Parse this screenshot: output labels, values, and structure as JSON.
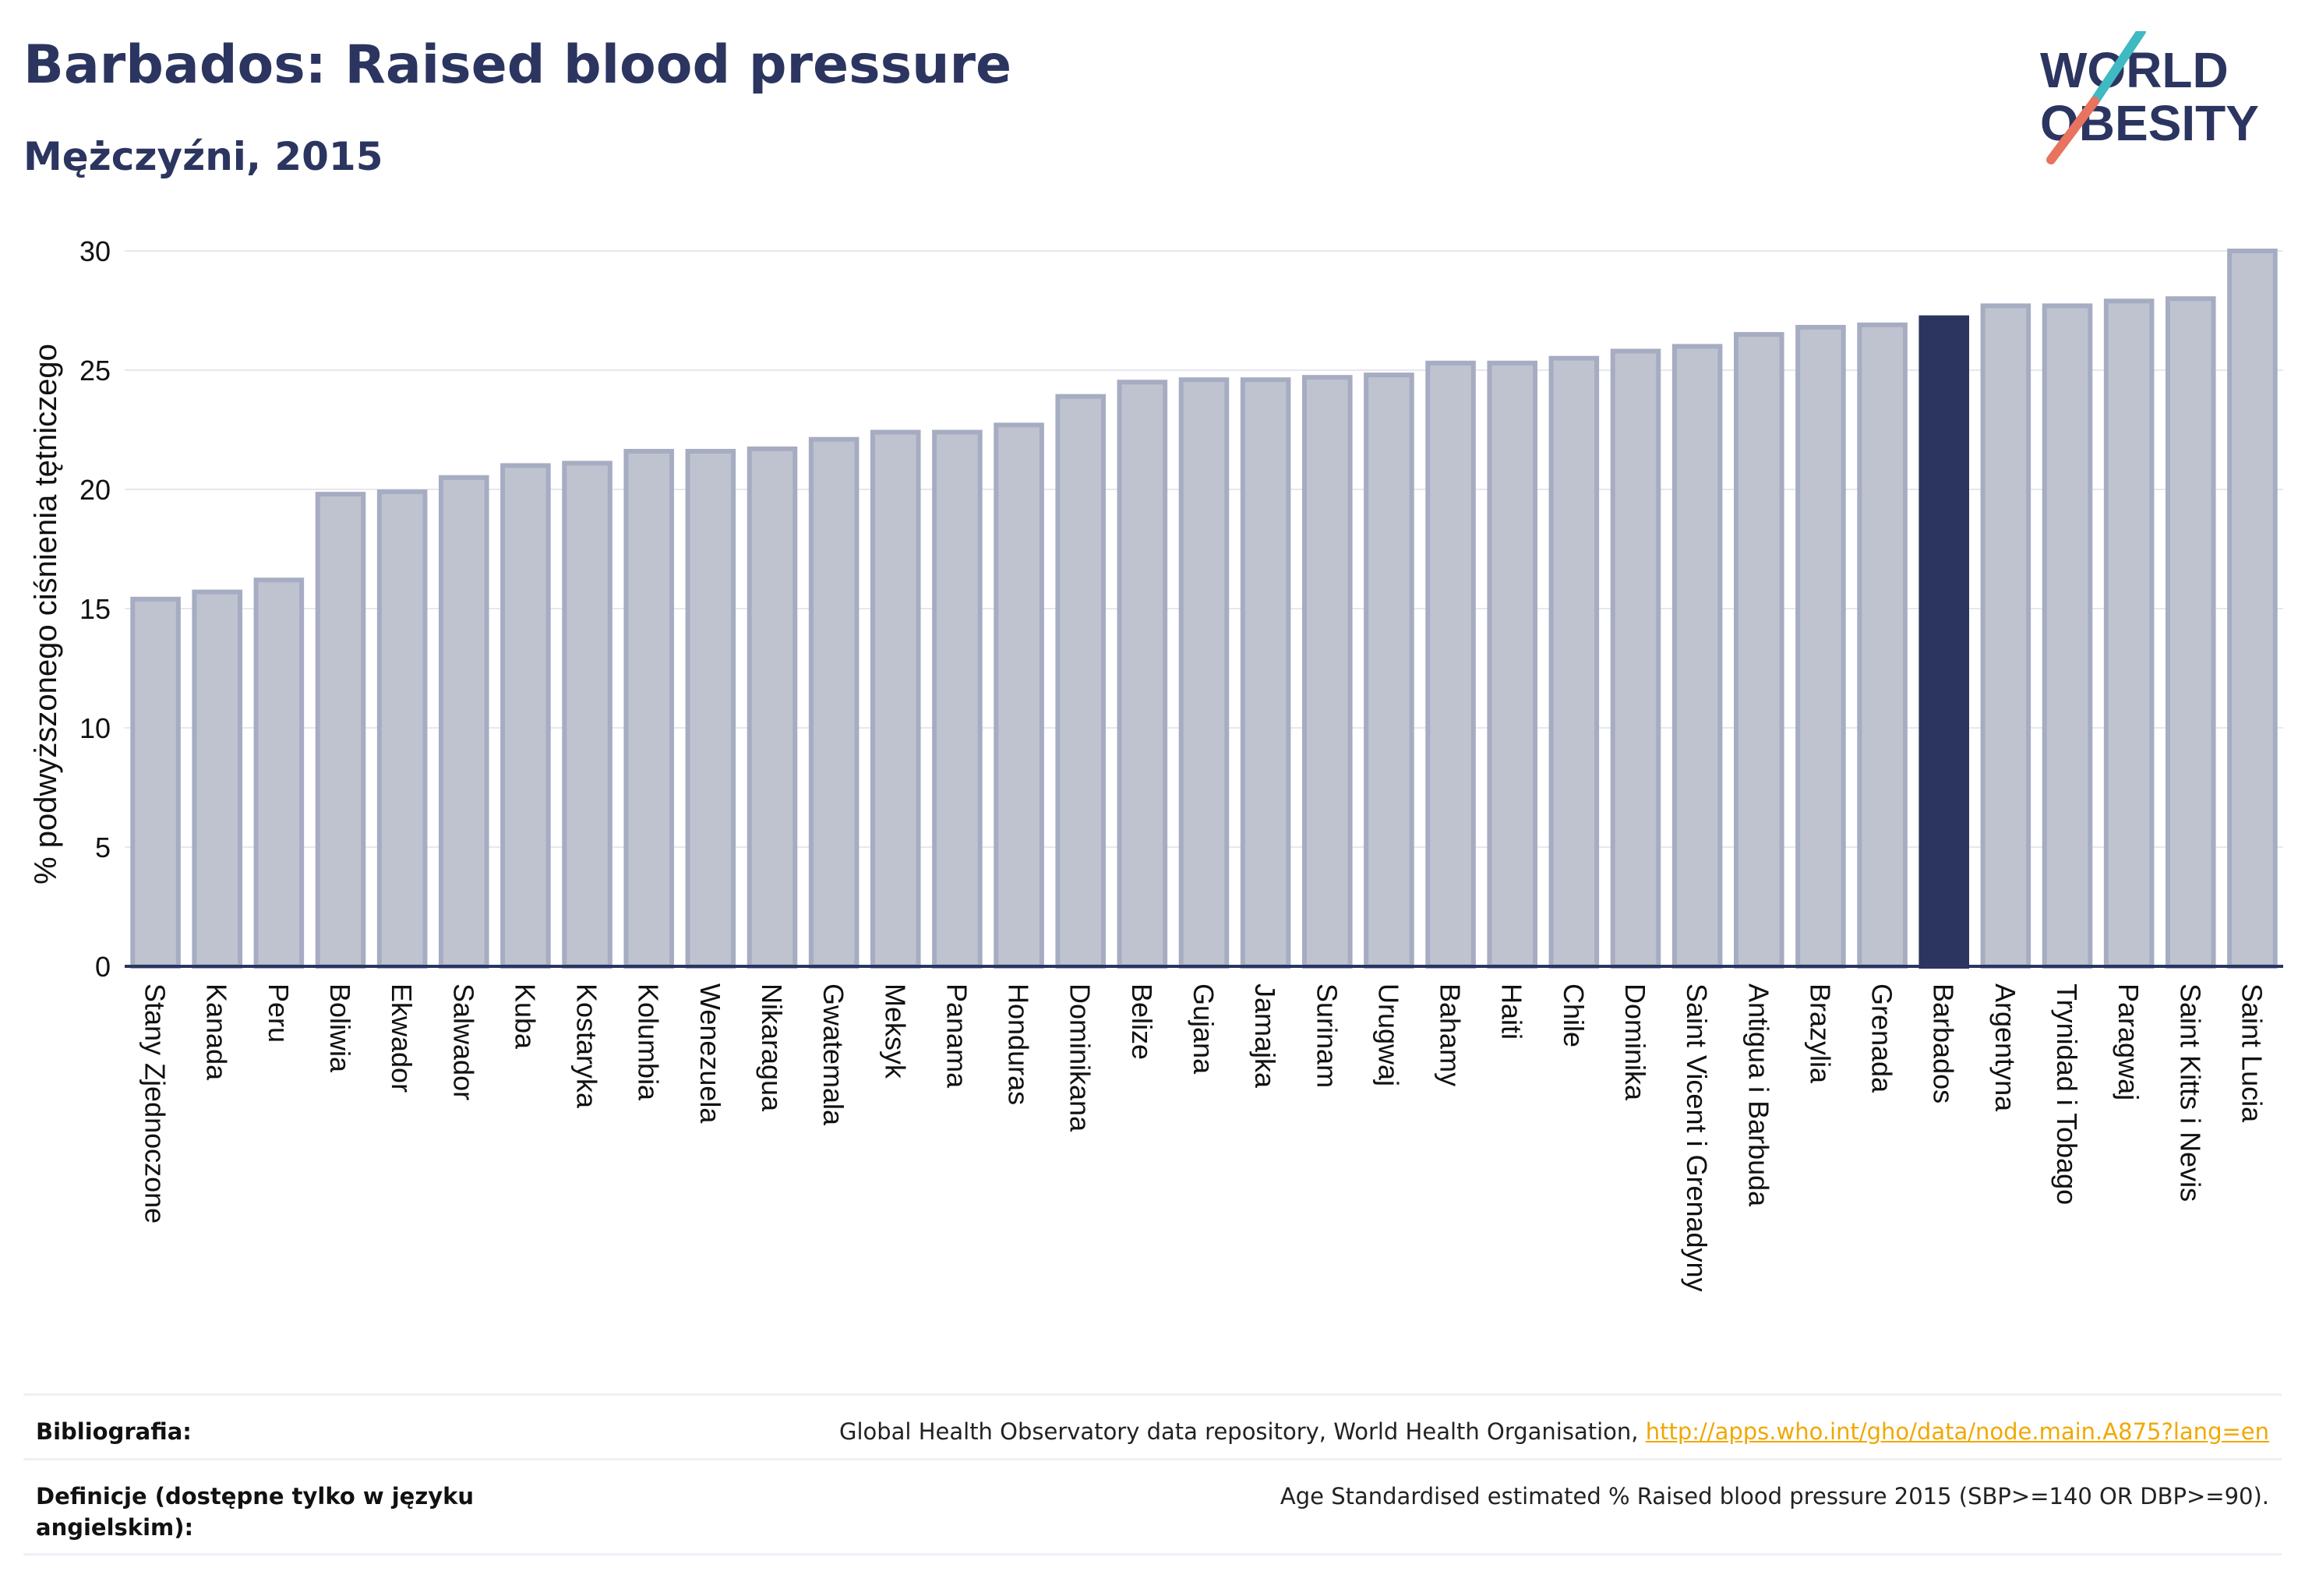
{
  "header": {
    "title": "Barbados: Raised blood pressure",
    "subtitle": "Mężczyźni, 2015"
  },
  "logo": {
    "line1": "WORLD",
    "line2": "OBESITY",
    "colors": {
      "text": "#2b3560",
      "slash_top": "#3fb9c2",
      "slash_bottom": "#e8735f"
    }
  },
  "chart_data": {
    "type": "bar",
    "ylabel": "% podwyższonego ciśnienia tętniczego",
    "xlabel": "",
    "ylim": [
      0,
      30
    ],
    "yticks": [
      0,
      5,
      10,
      15,
      20,
      25,
      30
    ],
    "grid": true,
    "highlight": "Barbados",
    "colors": {
      "bar": "#bfc3d0",
      "bar_edge": "#a6acc1",
      "highlight": "#2b3560",
      "axis": "#2b3560",
      "grid": "#e6e8ee"
    },
    "categories": [
      "Stany Zjednoczone",
      "Kanada",
      "Peru",
      "Boliwia",
      "Ekwador",
      "Salwador",
      "Kuba",
      "Kostaryka",
      "Kolumbia",
      "Wenezuela",
      "Nikaragua",
      "Gwatemala",
      "Meksyk",
      "Panama",
      "Honduras",
      "Dominikana",
      "Belize",
      "Gujana",
      "Jamajka",
      "Surinam",
      "Urugwaj",
      "Bahamy",
      "Haiti",
      "Chile",
      "Dominika",
      "Saint Vicent i Grenadyny",
      "Antigua i Barbuda",
      "Brazylia",
      "Grenada",
      "Barbados",
      "Argentyna",
      "Trynidad i Tobago",
      "Paragwaj",
      "Saint Kitts i Nevis",
      "Saint Lucia"
    ],
    "values": [
      15.4,
      15.7,
      16.2,
      19.8,
      19.9,
      20.5,
      21.0,
      21.1,
      21.6,
      21.6,
      21.7,
      22.1,
      22.4,
      22.4,
      22.7,
      23.9,
      24.5,
      24.6,
      24.6,
      24.7,
      24.8,
      25.3,
      25.3,
      25.5,
      25.8,
      26.0,
      26.5,
      26.8,
      26.9,
      27.2,
      27.7,
      27.7,
      27.9,
      28.0,
      30.0
    ]
  },
  "footer": {
    "bibliography_label": "Bibliografia:",
    "bibliography_text": "Global Health Observatory data repository, World Health Organisation,",
    "bibliography_link": "http://apps.who.int/gho/data/node.main.A875?lang=en",
    "definition_label": "Definicje (dostępne tylko w języku angielskim):",
    "definition_text": "Age Standardised estimated % Raised blood pressure 2015 (SBP>=140 OR DBP>=90)."
  }
}
